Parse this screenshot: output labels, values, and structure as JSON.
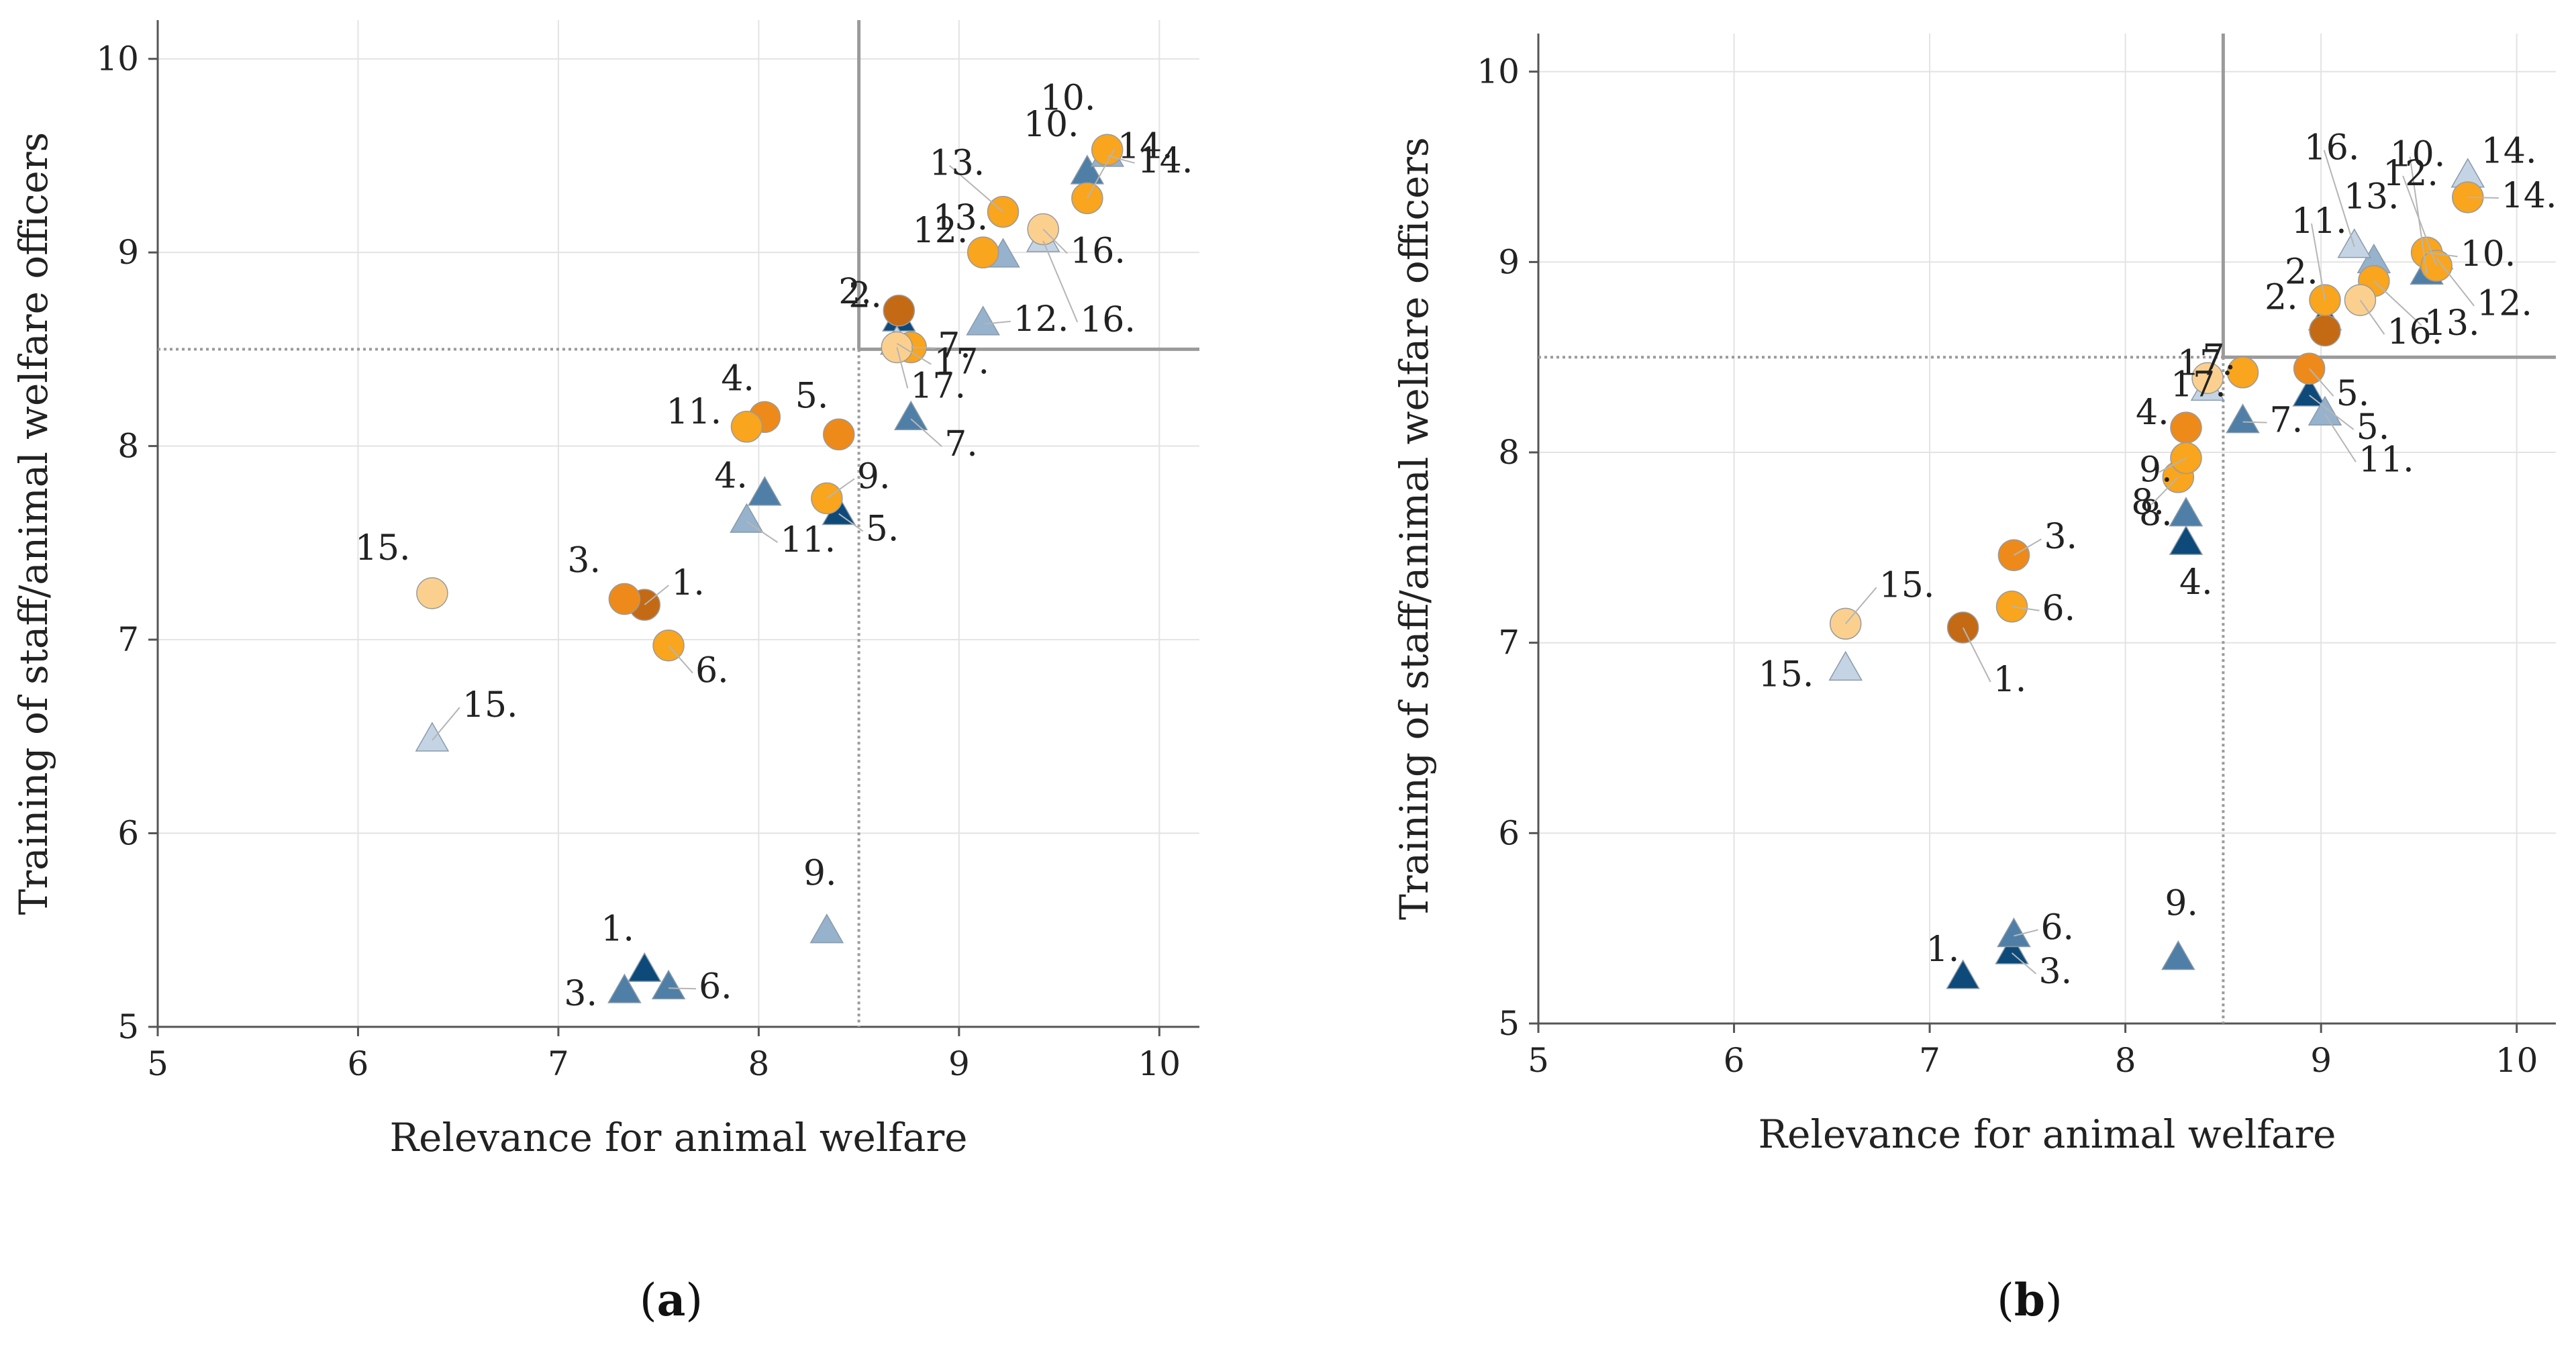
{
  "chart_data": [
    {
      "type": "scatter",
      "panel_label": "a",
      "xlabel": "Relevance for animal welfare",
      "ylabel": "Training of staff/animal welfare officers",
      "xlim": [
        5,
        10.2
      ],
      "ylim": [
        5,
        10.2
      ],
      "xticks": [
        "5",
        "6",
        "7",
        "8",
        "9",
        "10"
      ],
      "yticks": [
        "5",
        "6",
        "7",
        "8",
        "9",
        "10"
      ],
      "threshold_x": 8.5,
      "threshold_y": 8.5,
      "colors": {
        "orange": "#f9a51e",
        "dark_orange": "#ee8a1a",
        "brown": "#c46a14",
        "light_orange": "#fbd08f",
        "dark_blue": "#0d4a7a",
        "mid_blue": "#4f7fa6",
        "light_blue": "#96b2cc",
        "pale_blue": "#c4d4e4"
      },
      "series": [
        {
          "name": "circles",
          "marker": "circle",
          "points": [
            {
              "label": "1.",
              "x": 7.43,
              "y": 7.18,
              "color": "brown"
            },
            {
              "label": "2.",
              "x": 8.7,
              "y": 8.7,
              "color": "brown"
            },
            {
              "label": "3.",
              "x": 7.33,
              "y": 7.21,
              "color": "dark_orange"
            },
            {
              "label": "4.",
              "x": 8.03,
              "y": 8.15,
              "color": "dark_orange"
            },
            {
              "label": "5.",
              "x": 8.4,
              "y": 8.06,
              "color": "dark_orange"
            },
            {
              "label": "6.",
              "x": 7.55,
              "y": 6.97,
              "color": "orange"
            },
            {
              "label": "7.",
              "x": 8.76,
              "y": 8.51,
              "color": "orange"
            },
            {
              "label": "9.",
              "x": 8.34,
              "y": 7.73,
              "color": "orange"
            },
            {
              "label": "10.",
              "x": 9.74,
              "y": 9.53,
              "color": "orange"
            },
            {
              "label": "11.",
              "x": 7.94,
              "y": 8.1,
              "color": "orange"
            },
            {
              "label": "12.",
              "x": 9.12,
              "y": 9.0,
              "color": "orange"
            },
            {
              "label": "13.",
              "x": 9.22,
              "y": 9.21,
              "color": "orange"
            },
            {
              "label": "14.",
              "x": 9.64,
              "y": 9.28,
              "color": "orange"
            },
            {
              "label": "15.",
              "x": 6.37,
              "y": 7.24,
              "color": "light_orange"
            },
            {
              "label": "16.",
              "x": 9.42,
              "y": 9.12,
              "color": "light_orange"
            },
            {
              "label": "17.",
              "x": 8.69,
              "y": 8.51,
              "color": "light_orange"
            }
          ]
        },
        {
          "name": "triangles",
          "marker": "triangle",
          "points": [
            {
              "label": "1.",
              "x": 7.43,
              "y": 5.29,
              "color": "dark_blue"
            },
            {
              "label": "2.",
              "x": 8.7,
              "y": 8.65,
              "color": "dark_blue"
            },
            {
              "label": "3.",
              "x": 7.33,
              "y": 5.18,
              "color": "mid_blue"
            },
            {
              "label": "4.",
              "x": 8.03,
              "y": 7.75,
              "color": "mid_blue"
            },
            {
              "label": "5.",
              "x": 8.4,
              "y": 7.65,
              "color": "dark_blue"
            },
            {
              "label": "6.",
              "x": 7.55,
              "y": 5.2,
              "color": "mid_blue"
            },
            {
              "label": "7.",
              "x": 8.76,
              "y": 8.14,
              "color": "mid_blue"
            },
            {
              "label": "9.",
              "x": 8.34,
              "y": 5.49,
              "color": "light_blue"
            },
            {
              "label": "10.",
              "x": 9.64,
              "y": 9.41,
              "color": "mid_blue"
            },
            {
              "label": "11.",
              "x": 7.94,
              "y": 7.61,
              "color": "light_blue"
            },
            {
              "label": "12.",
              "x": 9.12,
              "y": 8.63,
              "color": "light_blue"
            },
            {
              "label": "13.",
              "x": 9.22,
              "y": 8.98,
              "color": "light_blue"
            },
            {
              "label": "14.",
              "x": 9.74,
              "y": 9.5,
              "color": "light_blue"
            },
            {
              "label": "15.",
              "x": 6.37,
              "y": 6.48,
              "color": "pale_blue"
            },
            {
              "label": "16.",
              "x": 9.42,
              "y": 9.06,
              "color": "pale_blue"
            },
            {
              "label": "17.",
              "x": 8.69,
              "y": 8.53,
              "color": "pale_blue"
            }
          ]
        }
      ]
    },
    {
      "type": "scatter",
      "panel_label": "b",
      "xlabel": "Relevance for animal welfare",
      "ylabel": "Training of staff/animal welfare officers",
      "xlim": [
        5,
        10.2
      ],
      "ylim": [
        5,
        10.2
      ],
      "xticks": [
        "5",
        "6",
        "7",
        "8",
        "9",
        "10"
      ],
      "yticks": [
        "5",
        "6",
        "7",
        "8",
        "9",
        "10"
      ],
      "threshold_x": 8.5,
      "threshold_y": 8.5,
      "colors": {
        "orange": "#f9a51e",
        "dark_orange": "#ee8a1a",
        "brown": "#c46a14",
        "light_orange": "#fbd08f",
        "dark_blue": "#0d4a7a",
        "mid_blue": "#4f7fa6",
        "light_blue": "#96b2cc",
        "pale_blue": "#c4d4e4"
      },
      "series": [
        {
          "name": "circles",
          "marker": "circle",
          "points": [
            {
              "label": "1.",
              "x": 7.17,
              "y": 7.08,
              "color": "brown"
            },
            {
              "label": "2.",
              "x": 9.02,
              "y": 8.64,
              "color": "brown"
            },
            {
              "label": "3.",
              "x": 7.43,
              "y": 7.46,
              "color": "dark_orange"
            },
            {
              "label": "4.",
              "x": 8.31,
              "y": 8.13,
              "color": "dark_orange"
            },
            {
              "label": "5.",
              "x": 8.94,
              "y": 8.44,
              "color": "dark_orange"
            },
            {
              "label": "6.",
              "x": 7.42,
              "y": 7.19,
              "color": "orange"
            },
            {
              "label": "7.",
              "x": 8.6,
              "y": 8.42,
              "color": "orange"
            },
            {
              "label": "8.",
              "x": 8.27,
              "y": 7.87,
              "color": "orange"
            },
            {
              "label": "9.",
              "x": 8.31,
              "y": 7.97,
              "color": "orange"
            },
            {
              "label": "10.",
              "x": 9.54,
              "y": 9.05,
              "color": "orange"
            },
            {
              "label": "11.",
              "x": 9.02,
              "y": 8.8,
              "color": "orange"
            },
            {
              "label": "12.",
              "x": 9.59,
              "y": 8.98,
              "color": "orange"
            },
            {
              "label": "13.",
              "x": 9.27,
              "y": 8.9,
              "color": "orange"
            },
            {
              "label": "14.",
              "x": 9.75,
              "y": 9.34,
              "color": "orange"
            },
            {
              "label": "15.",
              "x": 6.57,
              "y": 7.1,
              "color": "light_orange"
            },
            {
              "label": "16.",
              "x": 9.2,
              "y": 8.8,
              "color": "light_orange"
            },
            {
              "label": "17.",
              "x": 8.42,
              "y": 8.39,
              "color": "light_orange"
            }
          ]
        },
        {
          "name": "triangles",
          "marker": "triangle",
          "points": [
            {
              "label": "1.",
              "x": 7.17,
              "y": 5.24,
              "color": "dark_blue"
            },
            {
              "label": "2.",
              "x": 9.02,
              "y": 8.7,
              "color": "dark_blue"
            },
            {
              "label": "3.",
              "x": 7.42,
              "y": 5.37,
              "color": "dark_blue"
            },
            {
              "label": "4.",
              "x": 8.31,
              "y": 7.52,
              "color": "dark_blue"
            },
            {
              "label": "5.",
              "x": 8.94,
              "y": 8.3,
              "color": "dark_blue"
            },
            {
              "label": "6.",
              "x": 7.43,
              "y": 5.46,
              "color": "mid_blue"
            },
            {
              "label": "7.",
              "x": 8.6,
              "y": 8.16,
              "color": "mid_blue"
            },
            {
              "label": "8.",
              "x": 8.31,
              "y": 7.67,
              "color": "mid_blue"
            },
            {
              "label": "9.",
              "x": 8.27,
              "y": 5.34,
              "color": "mid_blue"
            },
            {
              "label": "10.",
              "x": 9.54,
              "y": 8.94,
              "color": "mid_blue"
            },
            {
              "label": "11.",
              "x": 9.02,
              "y": 8.2,
              "color": "light_blue"
            },
            {
              "label": "12.",
              "x": 9.59,
              "y": 9.02,
              "color": "light_blue"
            },
            {
              "label": "13.",
              "x": 9.27,
              "y": 9.0,
              "color": "light_blue"
            },
            {
              "label": "14.",
              "x": 9.75,
              "y": 9.45,
              "color": "pale_blue"
            },
            {
              "label": "15.",
              "x": 6.57,
              "y": 6.86,
              "color": "pale_blue"
            },
            {
              "label": "16.",
              "x": 9.17,
              "y": 9.08,
              "color": "pale_blue"
            },
            {
              "label": "17.",
              "x": 8.42,
              "y": 8.33,
              "color": "pale_blue"
            }
          ]
        }
      ]
    }
  ]
}
